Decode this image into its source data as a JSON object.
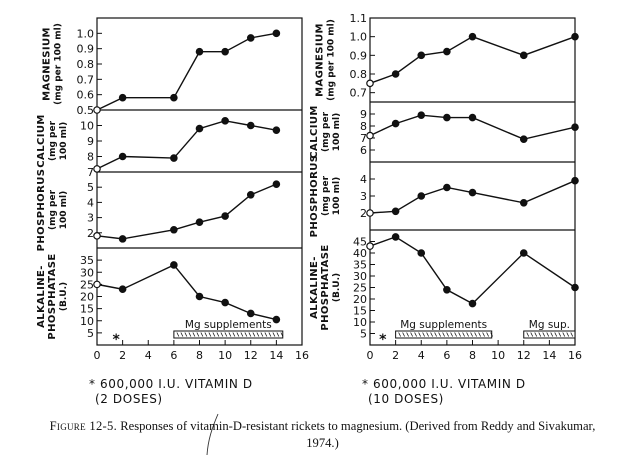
{
  "caption": {
    "label": "Figure 12-5.",
    "text": "Responses of vitamin-D-resistant rickets to magnesium. (Derived from Reddy and Sivakumar, 1974.)"
  },
  "chart_data": [
    {
      "type": "line",
      "title": "",
      "column": "left",
      "x_ticks": [
        "0",
        "2",
        "4",
        "6",
        "8",
        "10",
        "12",
        "14",
        "16"
      ],
      "xlim": [
        0,
        16
      ],
      "footnote": "* 600,000 I.U. VITAMIN D",
      "footnote_sub": "(2 DOSES)",
      "vitamin_marker_x": 1.5,
      "panels": [
        {
          "key": "mg",
          "ylabel": "MAGNESIUM",
          "ylabel_sub": [
            "(mg per 100 ml)"
          ],
          "ylim": [
            0.5,
            1.1
          ],
          "yticks": [
            0.5,
            0.6,
            0.7,
            0.8,
            0.9,
            1.0
          ],
          "ytick_labels": [
            "0.5",
            "0.6",
            "0.7",
            "0.8",
            "0.9",
            "1.0"
          ],
          "x": [
            0,
            2,
            6,
            8,
            10,
            12,
            14
          ],
          "y": [
            0.5,
            0.58,
            0.58,
            0.88,
            0.88,
            0.97,
            1.0
          ],
          "open_first": true
        },
        {
          "key": "ca",
          "ylabel": "CALCIUM",
          "ylabel_sub": [
            "(mg per",
            "100 ml)"
          ],
          "ylim": [
            7,
            11
          ],
          "yticks": [
            7,
            8,
            9,
            10
          ],
          "ytick_labels": [
            "7",
            "8",
            "9",
            "10"
          ],
          "x": [
            0,
            2,
            6,
            8,
            10,
            12,
            14
          ],
          "y": [
            7.2,
            8.0,
            7.9,
            9.8,
            10.3,
            10.0,
            9.7
          ],
          "open_first": true
        },
        {
          "key": "p",
          "ylabel": "PHOSPHORUS",
          "ylabel_sub": [
            "(mg per",
            "100 ml)"
          ],
          "ylim": [
            1,
            6
          ],
          "yticks": [
            2,
            3,
            4,
            5
          ],
          "ytick_labels": [
            "2",
            "3",
            "4",
            "5"
          ],
          "x": [
            0,
            2,
            6,
            8,
            10,
            12,
            14
          ],
          "y": [
            1.8,
            1.6,
            2.2,
            2.7,
            3.1,
            4.5,
            5.2
          ],
          "open_first": true
        },
        {
          "key": "alp",
          "ylabel": "ALKALINE-",
          "ylabel_2": "PHOSPHATASE",
          "ylabel_sub": [
            "(B.U.)"
          ],
          "ylim": [
            0,
            40
          ],
          "yticks": [
            5,
            10,
            15,
            20,
            25,
            30,
            35
          ],
          "ytick_labels": [
            "5",
            "10",
            "15",
            "20",
            "25",
            "30",
            "35"
          ],
          "x": [
            0,
            2,
            6,
            8,
            10,
            12,
            14
          ],
          "y": [
            25,
            23,
            33,
            20,
            17.5,
            13,
            10.5
          ],
          "open_first": true,
          "supplements": [
            {
              "label": "Mg supplements",
              "x_start": 6,
              "x_end": 14.5
            }
          ]
        }
      ]
    },
    {
      "type": "line",
      "title": "",
      "column": "right",
      "x_ticks": [
        "0",
        "2",
        "4",
        "6",
        "8",
        "10",
        "12",
        "14",
        "16"
      ],
      "xlim": [
        0,
        16
      ],
      "footnote": "* 600,000 I.U. VITAMIN D",
      "footnote_sub": "(10 DOSES)",
      "vitamin_marker_x": 1,
      "panels": [
        {
          "key": "mg",
          "ylabel": "MAGNESIUM",
          "ylabel_sub": [
            "(mg per 100 ml)"
          ],
          "ylim": [
            0.65,
            1.1
          ],
          "yticks": [
            0.7,
            0.8,
            0.9,
            1.0,
            1.1
          ],
          "ytick_labels": [
            "0.7",
            "0.8",
            "0.9",
            "1.0",
            "1.1"
          ],
          "x": [
            0,
            2,
            4,
            6,
            8,
            12,
            16
          ],
          "y": [
            0.75,
            0.8,
            0.9,
            0.92,
            1.0,
            0.9,
            1.0
          ],
          "open_first": true
        },
        {
          "key": "ca",
          "ylabel": "CALCIUM",
          "ylabel_sub": [
            "(mg per",
            "100 ml)"
          ],
          "ylim": [
            5,
            10
          ],
          "yticks": [
            6,
            7,
            8,
            9
          ],
          "ytick_labels": [
            "6",
            "7",
            "8",
            "9"
          ],
          "x": [
            0,
            2,
            4,
            6,
            8,
            12,
            16
          ],
          "y": [
            7.2,
            8.2,
            8.9,
            8.7,
            8.7,
            6.9,
            7.9
          ],
          "open_first": true
        },
        {
          "key": "p",
          "ylabel": "PHOSPHORUS",
          "ylabel_sub": [
            "(mg per",
            "100 ml)"
          ],
          "ylim": [
            1,
            5
          ],
          "yticks": [
            2,
            3,
            4
          ],
          "ytick_labels": [
            "2",
            "3",
            "4"
          ],
          "x": [
            0,
            2,
            4,
            6,
            8,
            12,
            16
          ],
          "y": [
            2.0,
            2.1,
            3.0,
            3.5,
            3.2,
            2.6,
            3.9
          ],
          "open_first": true
        },
        {
          "key": "alp",
          "ylabel": "ALKALINE-",
          "ylabel_2": "PHOSPHATASE",
          "ylabel_sub": [
            "(B.U.)"
          ],
          "ylim": [
            0,
            50
          ],
          "yticks": [
            5,
            10,
            15,
            20,
            25,
            30,
            35,
            40,
            45
          ],
          "ytick_labels": [
            "5",
            "10",
            "15",
            "20",
            "25",
            "30",
            "35",
            "40",
            "45"
          ],
          "x": [
            0,
            2,
            4,
            6,
            8,
            12,
            16
          ],
          "y": [
            43,
            47,
            40,
            24,
            18,
            40,
            25
          ],
          "open_first": true,
          "supplements": [
            {
              "label": "Mg supplements",
              "x_start": 2,
              "x_end": 9.5
            },
            {
              "label": "Mg sup.",
              "x_start": 12,
              "x_end": 16
            }
          ]
        }
      ]
    }
  ]
}
